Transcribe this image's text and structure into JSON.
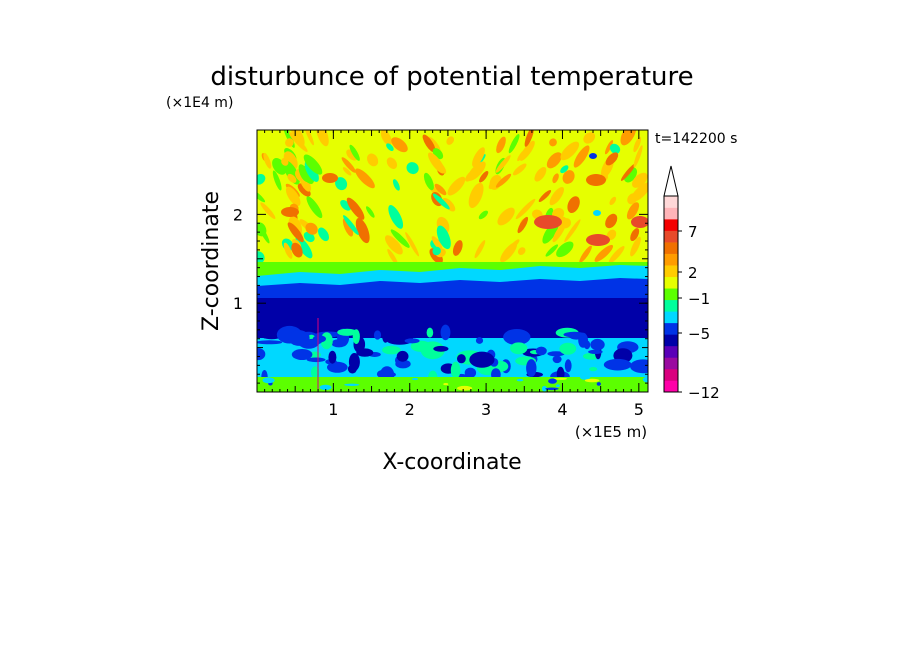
{
  "chart_data": {
    "type": "heatmap",
    "title": "disturbunce of potential temperature",
    "xlabel": "X-coordinate",
    "ylabel": "Z-coordinate",
    "x_unit": "(×1E5 m)",
    "y_unit": "(×1E4 m)",
    "time_label": "t=142200 s",
    "xlim": [
      0,
      5.12
    ],
    "ylim": [
      0,
      2.95
    ],
    "x_ticks": [
      "1",
      "2",
      "3",
      "4",
      "5"
    ],
    "y_ticks": [
      "1",
      "2"
    ],
    "colorbar": {
      "labels": [
        "7",
        "2",
        "−1",
        "−5",
        "−12"
      ],
      "colors": [
        "#ff00a8",
        "#d9007e",
        "#9a0aa0",
        "#5a00b8",
        "#0000a8",
        "#0033e6",
        "#00d8ff",
        "#00ff9c",
        "#5cff00",
        "#e6ff00",
        "#ffcc00",
        "#ff9c00",
        "#f07000",
        "#e84a2a",
        "#f40000",
        "#ffb4b8",
        "#ffd8d8"
      ],
      "extend": "max"
    },
    "regions": [
      {
        "z_range": [
          0.0,
          0.1
        ],
        "dominant": "green"
      },
      {
        "z_range": [
          0.1,
          0.6
        ],
        "dominant": "cyan / blue mix"
      },
      {
        "z_range": [
          0.6,
          1.1
        ],
        "dominant": "dark blue"
      },
      {
        "z_range": [
          1.1,
          1.3
        ],
        "dominant": "blue / cyan"
      },
      {
        "z_range": [
          1.3,
          2.95
        ],
        "dominant": "yellow / orange with green streaks"
      }
    ]
  }
}
